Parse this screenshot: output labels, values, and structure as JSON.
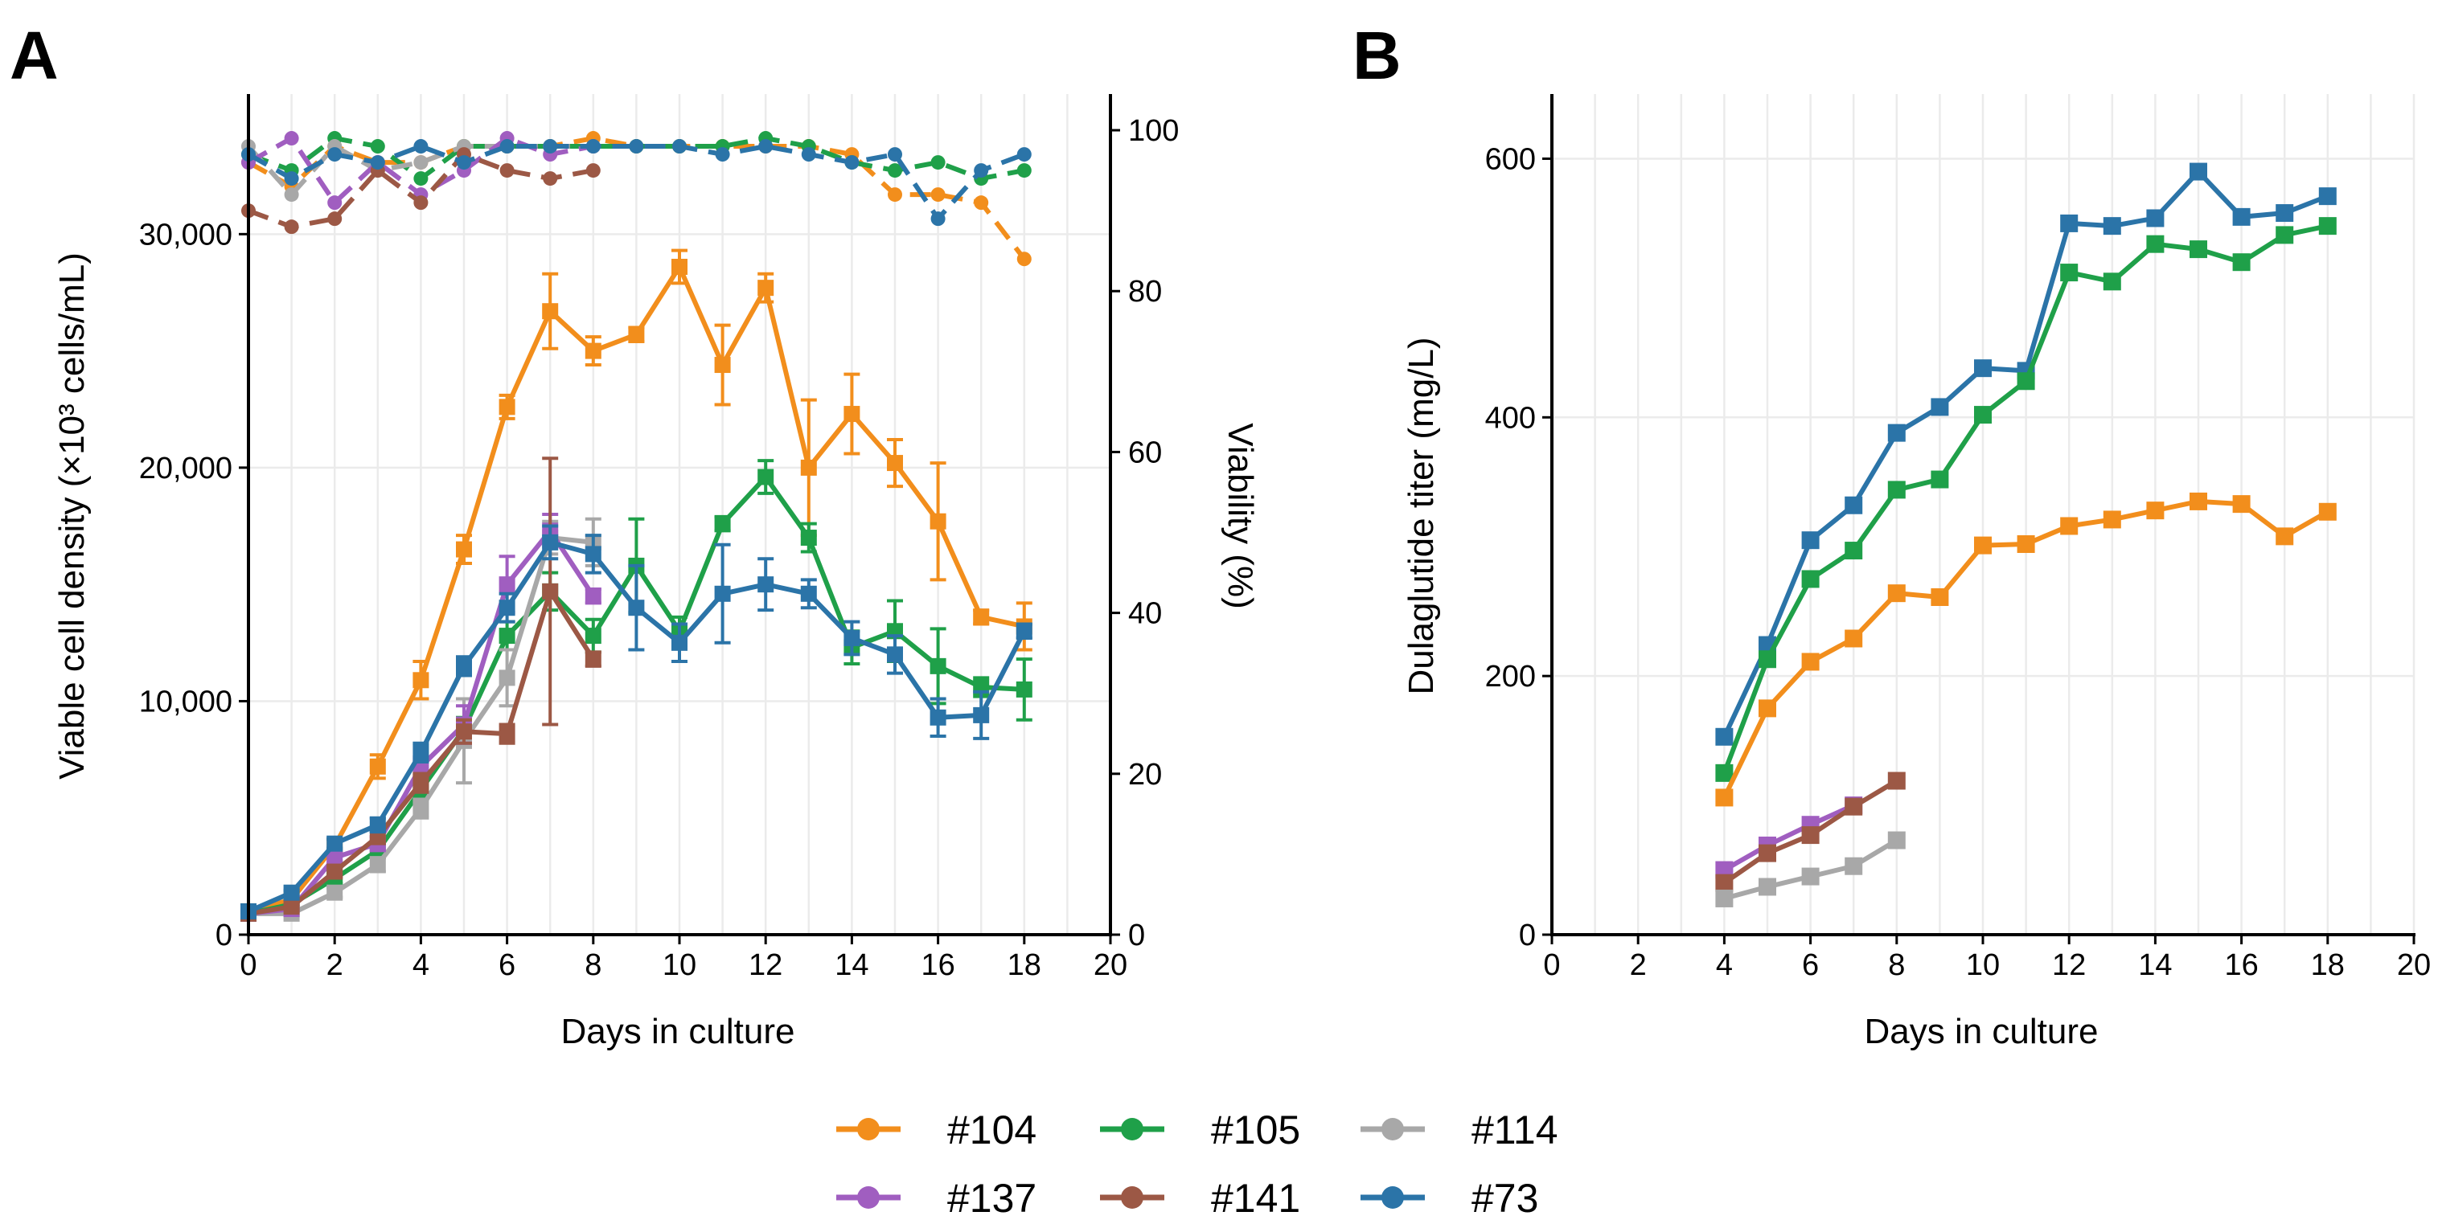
{
  "colors": {
    "#104": "#F28E1C",
    "#105": "#1FA049",
    "#114": "#A8A8A8",
    "#137": "#A05EC0",
    "#141": "#9C5845",
    "#73": "#2B74A8"
  },
  "legend": [
    "#104",
    "#105",
    "#114",
    "#137",
    "#141",
    "#73"
  ],
  "chart_data": [
    {
      "panel": "A",
      "type": "line",
      "xlabel": "Days in culture",
      "ylabel": "Viable cell density (×10³ cells/mL)",
      "y2label": "Viability (%)",
      "xlim": [
        0,
        20
      ],
      "ylim": [
        0,
        36000
      ],
      "y2lim": [
        0,
        104.5
      ],
      "xticks": [
        0,
        2,
        4,
        6,
        8,
        10,
        12,
        14,
        16,
        18,
        20
      ],
      "yticks": [
        0,
        10000,
        20000,
        30000
      ],
      "yticklabels": [
        "0",
        "10,000",
        "20,000",
        "30,000"
      ],
      "y2ticks": [
        0,
        20,
        40,
        60,
        80,
        100
      ],
      "y2ticklabels": [
        "0",
        "20",
        "40",
        "60",
        "80",
        "100"
      ],
      "vcd_series": [
        {
          "name": "#104",
          "x": [
            0,
            1,
            2,
            3,
            4,
            5,
            6,
            7,
            8,
            9,
            10,
            11,
            12,
            13,
            14,
            15,
            16,
            17,
            18
          ],
          "values": [
            1000,
            1500,
            3800,
            7200,
            10900,
            16500,
            22600,
            26700,
            25000,
            25700,
            28600,
            24400,
            27700,
            20000,
            22300,
            20200,
            17700,
            13600,
            13200
          ],
          "err": [
            100,
            200,
            300,
            500,
            800,
            600,
            500,
            1600,
            600,
            300,
            700,
            1700,
            600,
            2900,
            1700,
            1000,
            2500,
            300,
            1000
          ]
        },
        {
          "name": "#105",
          "x": [
            0,
            1,
            2,
            3,
            4,
            5,
            6,
            7,
            8,
            9,
            10,
            11,
            12,
            13,
            14,
            15,
            16,
            17,
            18
          ],
          "values": [
            900,
            1300,
            2400,
            3600,
            6200,
            8800,
            12800,
            14700,
            12800,
            15800,
            13000,
            17600,
            19600,
            17000,
            12300,
            13000,
            11500,
            10600,
            10500
          ],
          "err": [
            100,
            100,
            200,
            300,
            400,
            500,
            600,
            800,
            700,
            2000,
            600,
            300,
            700,
            600,
            700,
            1300,
            1600,
            400,
            1300
          ]
        },
        {
          "name": "#114",
          "x": [
            0,
            1,
            2,
            3,
            4,
            5,
            6,
            7,
            8
          ],
          "values": [
            900,
            900,
            1800,
            3000,
            5400,
            8300,
            11000,
            17000,
            16800
          ],
          "err": [
            100,
            100,
            200,
            300,
            400,
            1800,
            1200,
            700,
            1000
          ]
        },
        {
          "name": "#137",
          "x": [
            0,
            1,
            2,
            3,
            4,
            5,
            6,
            7,
            8
          ],
          "values": [
            900,
            1100,
            3300,
            3900,
            7200,
            9000,
            15000,
            17300,
            14500
          ],
          "err": [
            100,
            100,
            200,
            300,
            400,
            800,
            1200,
            700,
            300
          ]
        },
        {
          "name": "#141",
          "x": [
            0,
            1,
            2,
            3,
            4,
            5,
            6,
            7,
            8
          ],
          "values": [
            900,
            1200,
            2700,
            4200,
            6500,
            8700,
            8600,
            14700,
            11800
          ],
          "err": [
            100,
            100,
            200,
            300,
            400,
            500,
            400,
            5700,
            300
          ]
        },
        {
          "name": "#73",
          "x": [
            0,
            1,
            2,
            3,
            4,
            5,
            6,
            7,
            8,
            9,
            10,
            11,
            12,
            13,
            14,
            15,
            16,
            17,
            18
          ],
          "values": [
            1000,
            1800,
            3900,
            4700,
            7800,
            11500,
            14000,
            16800,
            16300,
            14000,
            12500,
            14600,
            15000,
            14600,
            12700,
            12000,
            9300,
            9400,
            13000
          ],
          "err": [
            100,
            100,
            200,
            300,
            400,
            400,
            600,
            700,
            800,
            1800,
            800,
            2100,
            1100,
            600,
            700,
            800,
            800,
            1000,
            300
          ]
        }
      ],
      "viability_series": [
        {
          "name": "#104",
          "x": [
            0,
            1,
            2,
            3,
            4,
            5,
            6,
            7,
            8,
            9,
            10,
            11,
            12,
            13,
            14,
            15,
            16,
            17,
            18
          ],
          "values": [
            96,
            93,
            98,
            96,
            96,
            98,
            98,
            98,
            99,
            98,
            98,
            98,
            98,
            98,
            97,
            92,
            92,
            91,
            84
          ]
        },
        {
          "name": "#105",
          "x": [
            0,
            1,
            2,
            3,
            4,
            5,
            6,
            7,
            8,
            9,
            10,
            11,
            12,
            13,
            14,
            15,
            16,
            17,
            18
          ],
          "values": [
            97,
            95,
            99,
            98,
            94,
            98,
            98,
            98,
            98,
            98,
            98,
            98,
            99,
            98,
            96,
            95,
            96,
            94,
            95
          ]
        },
        {
          "name": "#114",
          "x": [
            0,
            1,
            2,
            3,
            4,
            5,
            6,
            7,
            8
          ],
          "values": [
            98,
            92,
            98,
            95,
            96,
            98,
            98,
            98,
            98
          ]
        },
        {
          "name": "#137",
          "x": [
            0,
            1,
            2,
            3,
            4,
            5,
            6,
            7,
            8
          ],
          "values": [
            96,
            99,
            91,
            96,
            92,
            95,
            99,
            97,
            98
          ]
        },
        {
          "name": "#141",
          "x": [
            0,
            1,
            2,
            3,
            4,
            5,
            6,
            7,
            8
          ],
          "values": [
            90,
            88,
            89,
            95,
            91,
            97,
            95,
            94,
            95
          ]
        },
        {
          "name": "#73",
          "x": [
            0,
            1,
            2,
            3,
            4,
            5,
            6,
            7,
            8,
            9,
            10,
            11,
            12,
            13,
            14,
            15,
            16,
            17,
            18
          ],
          "values": [
            97,
            94,
            97,
            96,
            98,
            96,
            98,
            98,
            98,
            98,
            98,
            97,
            98,
            97,
            96,
            97,
            89,
            95,
            97
          ]
        }
      ]
    },
    {
      "panel": "B",
      "type": "line",
      "xlabel": "Days in culture",
      "ylabel": "Dulaglutide titer (mg/L)",
      "xlim": [
        0,
        20
      ],
      "ylim": [
        0,
        650
      ],
      "xticks": [
        0,
        2,
        4,
        6,
        8,
        10,
        12,
        14,
        16,
        18,
        20
      ],
      "yticks": [
        0,
        200,
        400,
        600
      ],
      "yticklabels": [
        "0",
        "200",
        "400",
        "600"
      ],
      "series": [
        {
          "name": "#73",
          "x": [
            4,
            5,
            6,
            7,
            8,
            9,
            10,
            11,
            12,
            13,
            14,
            15,
            16,
            17,
            18
          ],
          "values": [
            153,
            224,
            305,
            332,
            388,
            408,
            438,
            436,
            550,
            548,
            554,
            590,
            555,
            558,
            571
          ]
        },
        {
          "name": "#105",
          "x": [
            4,
            5,
            6,
            7,
            8,
            9,
            10,
            11,
            12,
            13,
            14,
            15,
            16,
            17,
            18
          ],
          "values": [
            125,
            213,
            275,
            297,
            344,
            352,
            402,
            428,
            512,
            505,
            534,
            530,
            520,
            541,
            548
          ]
        },
        {
          "name": "#104",
          "x": [
            4,
            5,
            6,
            7,
            8,
            9,
            10,
            11,
            12,
            13,
            14,
            15,
            16,
            17,
            18
          ],
          "values": [
            106,
            175,
            211,
            229,
            264,
            261,
            301,
            302,
            316,
            321,
            328,
            335,
            333,
            308,
            327
          ]
        },
        {
          "name": "#137",
          "x": [
            4,
            5,
            6,
            7
          ],
          "values": [
            50,
            69,
            85,
            100
          ]
        },
        {
          "name": "#141",
          "x": [
            4,
            5,
            6,
            7,
            8
          ],
          "values": [
            40,
            63,
            77,
            99,
            119
          ]
        },
        {
          "name": "#114",
          "x": [
            4,
            5,
            6,
            7,
            8
          ],
          "values": [
            28,
            37,
            45,
            53,
            73
          ]
        }
      ]
    }
  ]
}
